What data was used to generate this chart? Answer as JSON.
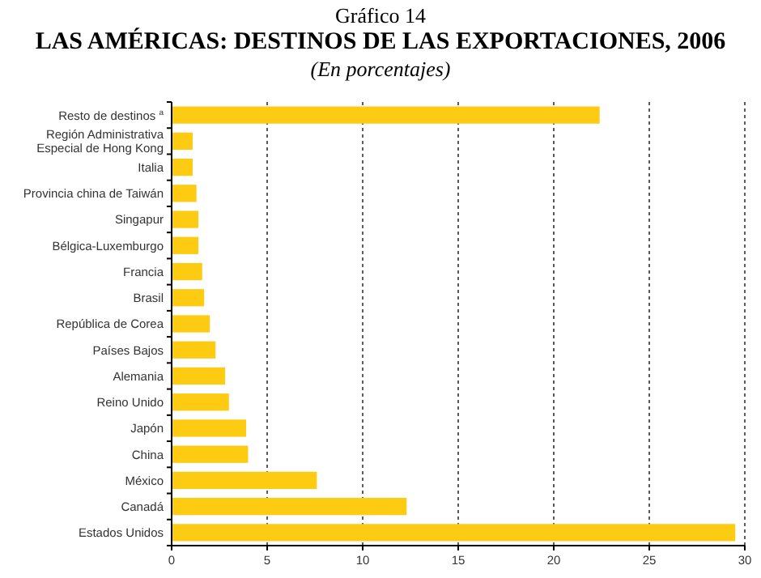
{
  "chart_data": {
    "type": "bar",
    "orientation": "horizontal",
    "title": "LAS AMÉRICAS: DESTINOS DE LAS EXPORTACIONES, 2006",
    "subtitle": "(En porcentajes)",
    "annotations": [
      "Gráfico 14"
    ],
    "categories": [
      "Resto de destinos $^{a}$",
      "Región Administrativa Especial de Hong Kong",
      "Italia",
      "Provincia china de Taiwán",
      "Singapur",
      "Bélgica-Luxemburgo",
      "Francia",
      "Brasil",
      "República de Corea",
      "Países Bajos",
      "Alemania",
      "Reino Unido",
      "Japón",
      "China",
      "México",
      "Canadá",
      "Estados Unidos"
    ],
    "values": [
      22.4,
      1.1,
      1.1,
      1.3,
      1.4,
      1.4,
      1.6,
      1.7,
      2.0,
      2.3,
      2.8,
      3.0,
      3.9,
      4.0,
      7.6,
      12.3,
      29.5
    ],
    "color": "#fecb13",
    "xlim": [
      0,
      30
    ],
    "xticks": [
      0,
      5,
      10,
      15,
      20,
      25,
      30
    ],
    "grid": "x"
  }
}
